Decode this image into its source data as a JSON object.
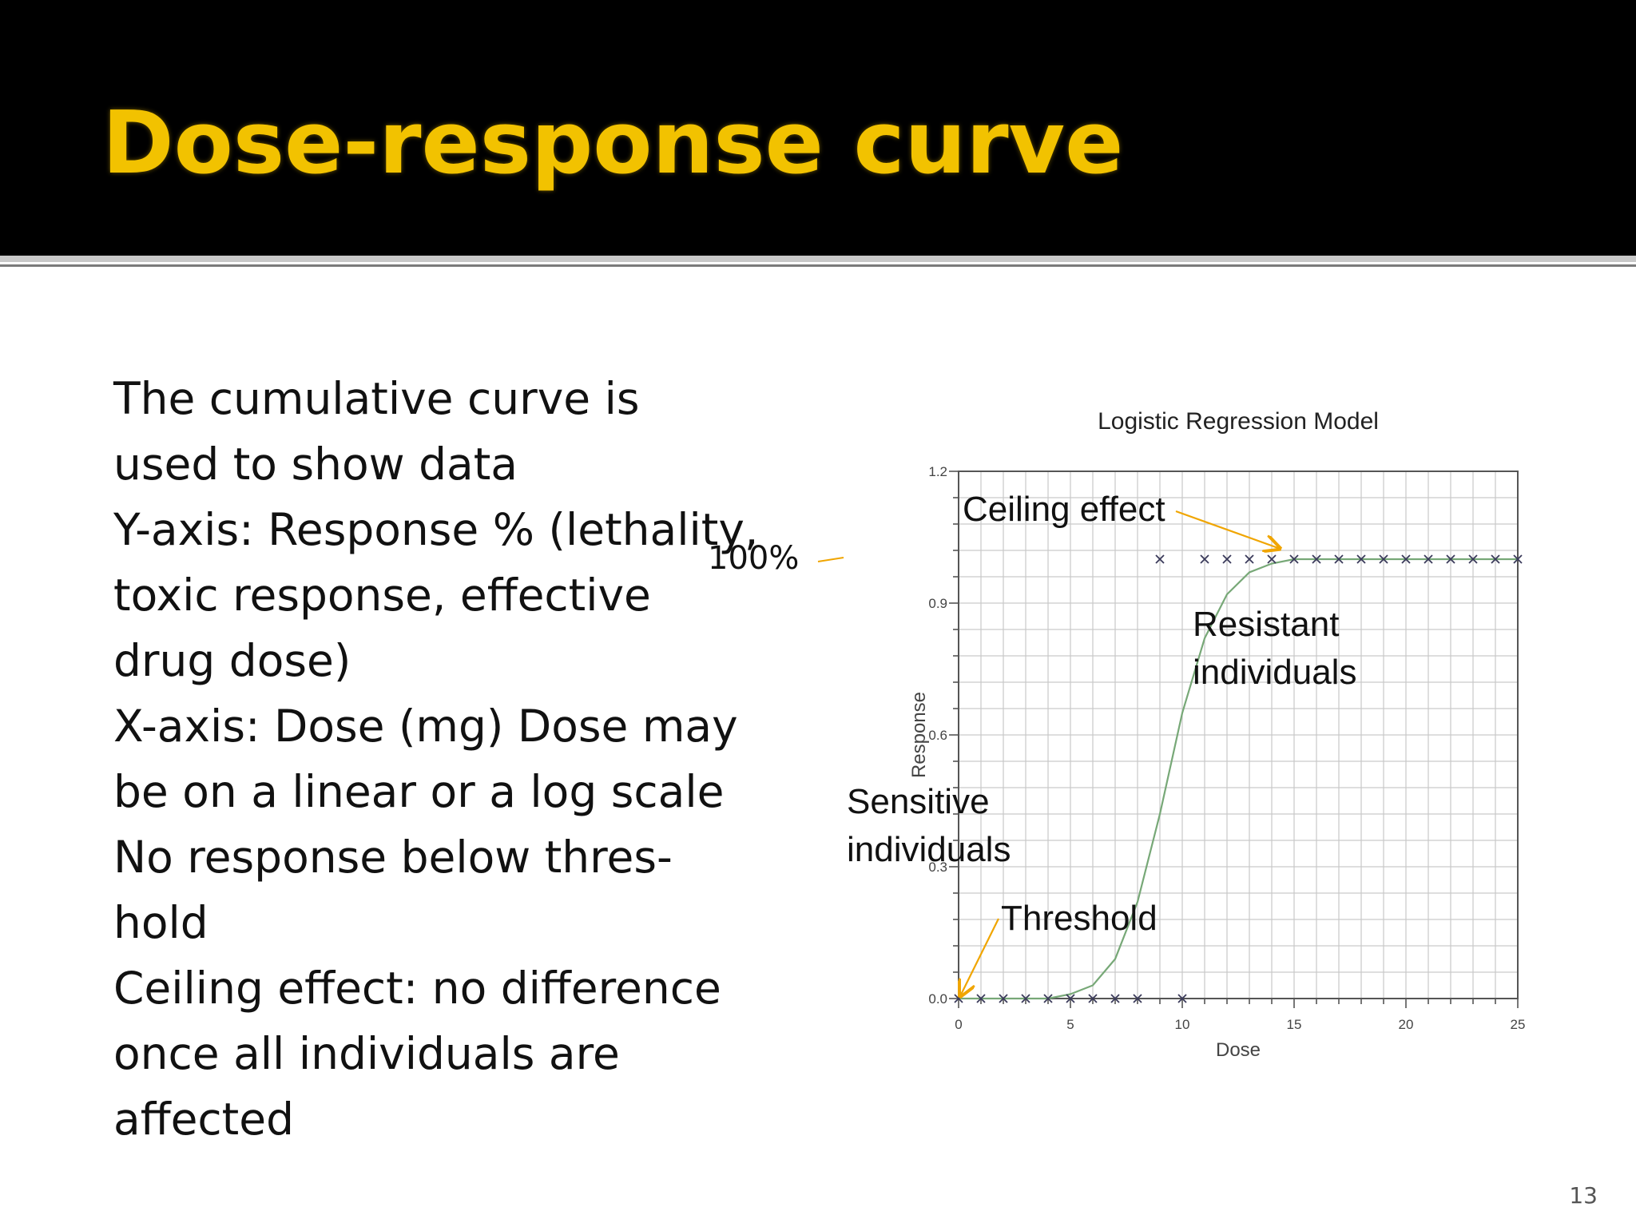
{
  "slide": {
    "title": "Dose-response curve",
    "body_lines": [
      "The cumulative curve is",
      "used to show data",
      "Y-axis: Response % (lethality,",
      "toxic response, effective",
      "drug dose)",
      "X-axis: Dose (mg) Dose may",
      "be on a linear or a log scale",
      "No response below thres-",
      "hold",
      "Ceiling effect: no difference",
      "once all individuals are",
      "affected"
    ],
    "page_number": "13",
    "colors": {
      "header_bg": "#000000",
      "title": "#f2c200",
      "arrow": "#f0a500"
    }
  },
  "chart_data": {
    "type": "scatter",
    "title": "Logistic Regression Model",
    "xlabel": "Dose",
    "ylabel": "Response",
    "xlim": [
      0,
      25
    ],
    "ylim": [
      0,
      1.2
    ],
    "xticks": [
      0,
      5,
      10,
      15,
      20,
      25
    ],
    "yticks": [
      0.0,
      0.3,
      0.6,
      0.9,
      1.2
    ],
    "xtick_labels": [
      "0",
      "5",
      "10",
      "15",
      "20",
      "25"
    ],
    "ytick_labels": [
      "0.0",
      "0.3",
      "0.6",
      "0.9",
      "1.2"
    ],
    "grid": true,
    "points": {
      "x": [
        0,
        1,
        2,
        3,
        4,
        5,
        6,
        7,
        8,
        9,
        10,
        11,
        12,
        13,
        14,
        15,
        16,
        17,
        18,
        19,
        20,
        21,
        22,
        23,
        24,
        25
      ],
      "y": [
        0,
        0,
        0,
        0,
        0,
        0,
        0,
        0,
        0,
        1,
        0,
        1,
        1,
        1,
        1,
        1,
        1,
        1,
        1,
        1,
        1,
        1,
        1,
        1,
        1,
        1
      ]
    },
    "fit": {
      "x": [
        0,
        1,
        2,
        3,
        4,
        5,
        6,
        7,
        8,
        9,
        10,
        11,
        12,
        13,
        14,
        15,
        16,
        17,
        18,
        19,
        20,
        21,
        22,
        23,
        24,
        25
      ],
      "y": [
        0,
        0,
        0,
        0,
        0,
        0.01,
        0.03,
        0.09,
        0.22,
        0.42,
        0.65,
        0.82,
        0.92,
        0.97,
        0.99,
        1.0,
        1.0,
        1.0,
        1.0,
        1.0,
        1.0,
        1.0,
        1.0,
        1.0,
        1.0,
        1.0
      ]
    },
    "annotations": [
      {
        "text": "Ceiling effect"
      },
      {
        "text": "100%"
      },
      {
        "text": "Resistant individuals"
      },
      {
        "text": "Sensitive individuals"
      },
      {
        "text": "Threshold"
      }
    ]
  }
}
